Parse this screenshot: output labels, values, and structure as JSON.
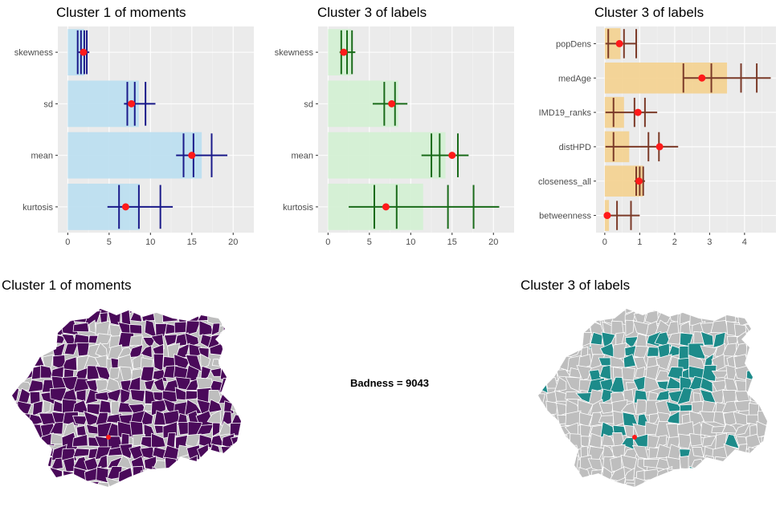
{
  "colors": {
    "panel_bg": "#ebebeb",
    "grid_major": "#ffffff",
    "bar_blue": "#bddff0",
    "bar_green": "#d4f0d4",
    "bar_orange": "#f3d394",
    "err_blue": "#1a1a8a",
    "err_green": "#1a6b1a",
    "err_brown": "#7b3a28",
    "point_red": "#ff1a1a",
    "map_purple": "#4a0a5a",
    "map_teal": "#1d8b8a",
    "map_grey": "#bebebe"
  },
  "chart_data": [
    {
      "type": "bar",
      "title": "Cluster 1 of moments",
      "orientation": "horizontal",
      "categories": [
        "skewness",
        "sd",
        "mean",
        "kurtosis"
      ],
      "bar_values": [
        2.0,
        8.6,
        16.2,
        8.7
      ],
      "point_values": [
        1.9,
        7.7,
        15.0,
        7.0
      ],
      "ticks": [
        0,
        5,
        10,
        15,
        20
      ],
      "xlim": [
        -1.2,
        22.5
      ],
      "errorbars": [
        {
          "centers": [
            1.2,
            1.6,
            2.0,
            2.3
          ],
          "low": 1.3,
          "high": 2.6
        },
        {
          "centers": [
            7.2,
            8.1,
            9.4
          ],
          "low": 6.8,
          "high": 10.6
        },
        {
          "centers": [
            14.0,
            15.2,
            17.4
          ],
          "low": 13.1,
          "high": 19.3
        },
        {
          "centers": [
            6.2,
            8.6,
            11.2
          ],
          "low": 4.8,
          "high": 12.7
        }
      ],
      "bar_color": "#bddff0",
      "errorbar_color": "#1a1a8a"
    },
    {
      "type": "bar",
      "title": "Cluster 3 of labels",
      "orientation": "horizontal",
      "categories": [
        "skewness",
        "sd",
        "mean",
        "kurtosis"
      ],
      "bar_values": [
        2.8,
        8.5,
        14.2,
        11.5
      ],
      "point_values": [
        1.9,
        7.7,
        15.0,
        7.0
      ],
      "ticks": [
        0,
        5,
        10,
        15,
        20
      ],
      "xlim": [
        -1.2,
        22.5
      ],
      "errorbars": [
        {
          "centers": [
            1.6,
            2.3,
            2.9
          ],
          "low": 1.4,
          "high": 3.3
        },
        {
          "centers": [
            6.8,
            8.1
          ],
          "low": 5.4,
          "high": 9.6
        },
        {
          "centers": [
            12.5,
            13.5,
            15.7
          ],
          "low": 11.3,
          "high": 17.0
        },
        {
          "centers": [
            5.6,
            8.3,
            14.5,
            17.6
          ],
          "low": 2.5,
          "high": 20.7
        }
      ],
      "bar_color": "#d4f0d4",
      "errorbar_color": "#1a6b1a"
    },
    {
      "type": "bar",
      "title": "Cluster 3 of labels",
      "orientation": "horizontal",
      "categories": [
        "popDens",
        "medAge",
        "IMD19_ranks",
        "distHPD",
        "closeness_all",
        "betweenness"
      ],
      "bar_values": [
        0.45,
        3.5,
        0.55,
        0.7,
        1.1,
        0.12
      ],
      "point_values": [
        0.42,
        2.78,
        0.95,
        1.57,
        0.98,
        0.07
      ],
      "ticks": [
        0,
        1,
        2,
        3,
        4
      ],
      "xlim": [
        -0.25,
        4.9
      ],
      "errorbars": [
        {
          "centers": [
            0.1,
            0.55,
            0.9
          ],
          "low": 0.02,
          "high": 0.9
        },
        {
          "centers": [
            2.25,
            3.05,
            3.9,
            4.35
          ],
          "low": 2.25,
          "high": 4.75
        },
        {
          "centers": [
            0.25,
            0.85,
            1.15
          ],
          "low": 0.02,
          "high": 1.5
        },
        {
          "centers": [
            0.25,
            1.25,
            1.55
          ],
          "low": 0.02,
          "high": 2.1
        },
        {
          "centers": [
            0.9,
            1.0,
            1.1
          ],
          "low": 0.85,
          "high": 1.15
        },
        {
          "centers": [
            0.35,
            0.75
          ],
          "low": 0.02,
          "high": 1.0
        }
      ],
      "bar_color": "#f3d394",
      "errorbar_color": "#7b3a28"
    }
  ],
  "maps": [
    {
      "title": "Cluster 1 of moments",
      "fill_color": "#4a0a5a"
    },
    {
      "title": "Cluster 3 of labels",
      "fill_color": "#1d8b8a"
    }
  ],
  "badness": "Badness = 9043"
}
